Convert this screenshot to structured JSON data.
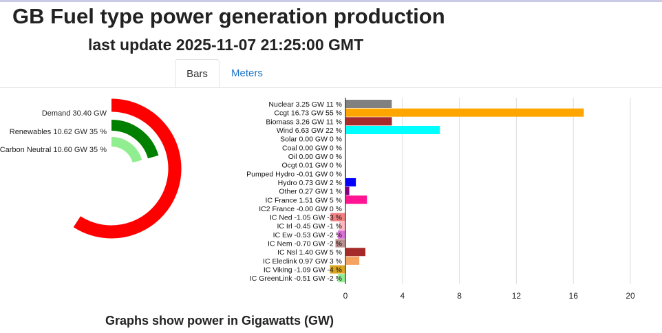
{
  "header": {
    "title": "GB Fuel type power generation production",
    "subtitle": "last update 2025-11-07 21:25:00 GMT"
  },
  "tabs": [
    {
      "label": "Bars",
      "active": true
    },
    {
      "label": "Meters",
      "active": false
    }
  ],
  "footer": {
    "text": "Graphs show power in Gigawatts (GW)"
  },
  "chart_data": [
    {
      "type": "radial-bar",
      "series": [
        {
          "label": "Demand 30.40 GW",
          "value": 30.4,
          "color": "#ff0000"
        },
        {
          "label": "Renewables 10.62 GW 35 %",
          "value": 10.62,
          "color": "#008000"
        },
        {
          "label": "Carbon Neutral 10.60 GW 35 %",
          "value": 10.6,
          "color": "#90ee90"
        }
      ]
    },
    {
      "type": "bar",
      "orientation": "horizontal",
      "xlim": [
        -1.5,
        21
      ],
      "xticks": [
        "0",
        "4",
        "8",
        "12",
        "16",
        "20"
      ],
      "xtick_values": [
        0,
        4,
        8,
        12,
        16,
        20
      ],
      "grid": true,
      "categories": [
        {
          "label": "Nuclear 3.25 GW 11 %",
          "value": 3.25,
          "color": "#808080"
        },
        {
          "label": "Ccgt 16.73 GW 55 %",
          "value": 16.73,
          "color": "#ffa500"
        },
        {
          "label": "Biomass 3.26 GW 11 %",
          "value": 3.26,
          "color": "#a52a2a"
        },
        {
          "label": "Wind 6.63 GW 22 %",
          "value": 6.63,
          "color": "#00ffff"
        },
        {
          "label": "Solar 0.00 GW 0 %",
          "value": 0.0,
          "color": "#ffff00"
        },
        {
          "label": "Coal 0.00 GW 0 %",
          "value": 0.0,
          "color": "#000000"
        },
        {
          "label": "Oil 0.00 GW 0 %",
          "value": 0.0,
          "color": "#000000"
        },
        {
          "label": "Ocgt 0.01 GW 0 %",
          "value": 0.01,
          "color": "#ffa500"
        },
        {
          "label": "Pumped Hydro -0.01 GW 0 %",
          "value": -0.01,
          "color": "#0000ff"
        },
        {
          "label": "Hydro 0.73 GW 2 %",
          "value": 0.73,
          "color": "#0000ff"
        },
        {
          "label": "Other 0.27 GW 1 %",
          "value": 0.27,
          "color": "#800080"
        },
        {
          "label": "IC France 1.51 GW 5 %",
          "value": 1.51,
          "color": "#ff1493"
        },
        {
          "label": "IC2 France -0.00 GW 0 %",
          "value": 0.0,
          "color": "#ff1493"
        },
        {
          "label": "IC Ned -1.05 GW -3 %",
          "value": -1.05,
          "color": "#f08080"
        },
        {
          "label": "IC Irl -0.45 GW -1 %",
          "value": -0.45,
          "color": "#ffb6c1"
        },
        {
          "label": "IC Ew -0.53 GW -2 %",
          "value": -0.53,
          "color": "#da70d6"
        },
        {
          "label": "IC Nem -0.70 GW -2 %",
          "value": -0.7,
          "color": "#bc8f8f"
        },
        {
          "label": "IC Nsl 1.40 GW 5 %",
          "value": 1.4,
          "color": "#a52a2a"
        },
        {
          "label": "IC Eleclink 0.97 GW 3 %",
          "value": 0.97,
          "color": "#f4a460"
        },
        {
          "label": "IC Viking -1.09 GW -4 %",
          "value": -1.09,
          "color": "#daa520"
        },
        {
          "label": "IC GreenLink -0.51 GW -2 %",
          "value": -0.51,
          "color": "#90ee90"
        }
      ]
    }
  ]
}
